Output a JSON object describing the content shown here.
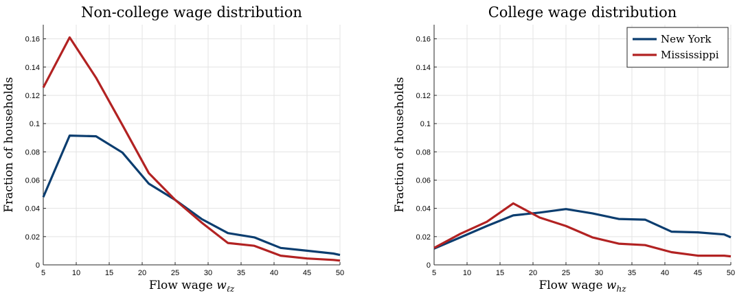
{
  "chart_data": [
    {
      "type": "line",
      "title": "Non-college wage distribution",
      "xlabel_text": "Flow wage ",
      "xlabel_var": "w",
      "xlabel_sub": "ℓz",
      "ylabel": "Fraction of households",
      "xlim": [
        5,
        50
      ],
      "ylim": [
        0,
        0.17
      ],
      "xticks": [
        5,
        10,
        15,
        20,
        25,
        30,
        35,
        40,
        45,
        50
      ],
      "yticks": [
        0,
        0.02,
        0.04,
        0.06,
        0.08,
        0.1,
        0.12,
        0.14,
        0.16
      ],
      "ytick_labels": [
        "0",
        "0.02",
        "0.04",
        "0.06",
        "0.08",
        "0.1",
        "0.12",
        "0.14",
        "0.16"
      ],
      "grid": true,
      "series": [
        {
          "name": "New York",
          "color": "#0b3d6f",
          "x": [
            5,
            9,
            13,
            17,
            21,
            25,
            29,
            33,
            37,
            41,
            45,
            49,
            50
          ],
          "y": [
            0.048,
            0.0915,
            0.091,
            0.0795,
            0.0575,
            0.046,
            0.0325,
            0.0225,
            0.0195,
            0.012,
            0.01,
            0.008,
            0.007
          ]
        },
        {
          "name": "Mississippi",
          "color": "#b22222",
          "x": [
            5,
            9,
            13,
            17,
            21,
            25,
            29,
            33,
            37,
            41,
            45,
            49,
            50
          ],
          "y": [
            0.1255,
            0.161,
            0.1325,
            0.099,
            0.065,
            0.046,
            0.03,
            0.0155,
            0.0135,
            0.0065,
            0.0045,
            0.0035,
            0.003
          ]
        }
      ]
    },
    {
      "type": "line",
      "title": "College wage distribution",
      "xlabel_text": "Flow wage ",
      "xlabel_var": "w",
      "xlabel_sub": "hz",
      "ylabel": "Fraction of households",
      "xlim": [
        5,
        50
      ],
      "ylim": [
        0,
        0.17
      ],
      "xticks": [
        5,
        10,
        15,
        20,
        25,
        30,
        35,
        40,
        45,
        50
      ],
      "yticks": [
        0,
        0.02,
        0.04,
        0.06,
        0.08,
        0.1,
        0.12,
        0.14,
        0.16
      ],
      "ytick_labels": [
        "0",
        "0.02",
        "0.04",
        "0.06",
        "0.08",
        "0.1",
        "0.12",
        "0.14",
        "0.16"
      ],
      "grid": true,
      "legend": "top-right",
      "series": [
        {
          "name": "New York",
          "color": "#0b3d6f",
          "x": [
            5,
            9,
            13,
            17,
            21,
            25,
            29,
            33,
            37,
            41,
            45,
            49,
            50
          ],
          "y": [
            0.0115,
            0.0195,
            0.0275,
            0.035,
            0.037,
            0.0395,
            0.0365,
            0.0325,
            0.032,
            0.0235,
            0.023,
            0.0215,
            0.0195
          ]
        },
        {
          "name": "Mississippi",
          "color": "#b22222",
          "x": [
            5,
            9,
            13,
            17,
            21,
            25,
            29,
            33,
            37,
            41,
            45,
            49,
            50
          ],
          "y": [
            0.012,
            0.022,
            0.0305,
            0.0435,
            0.0335,
            0.0275,
            0.0195,
            0.015,
            0.014,
            0.009,
            0.0065,
            0.0065,
            0.006
          ]
        }
      ]
    }
  ]
}
